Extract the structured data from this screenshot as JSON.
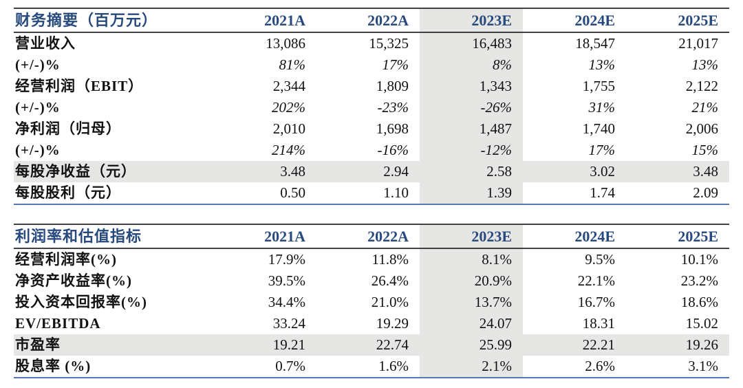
{
  "colors": {
    "header_text_blue": "#27497E",
    "highlight_gray": "#E6E6E4",
    "rule_dark": "#404040",
    "rule_bottom_blue": "#5578B4"
  },
  "tables": [
    {
      "title": "财务摘要（百万元）",
      "columns": [
        "2021A",
        "2022A",
        "2023E",
        "2024E",
        "2025E"
      ],
      "highlight_column": "2023E",
      "highlight_column_index": 2,
      "rows": [
        {
          "label": "营业收入",
          "values": [
            "13,086",
            "15,325",
            "16,483",
            "18,547",
            "21,017"
          ],
          "italic": false,
          "highlight": false
        },
        {
          "label": "(+/-)%",
          "values": [
            "81%",
            "17%",
            "8%",
            "13%",
            "13%"
          ],
          "italic": true,
          "highlight": false
        },
        {
          "label": "经营利润（EBIT）",
          "values": [
            "2,344",
            "1,809",
            "1,343",
            "1,755",
            "2,122"
          ],
          "italic": false,
          "highlight": false
        },
        {
          "label": "(+/-)%",
          "values": [
            "202%",
            "-23%",
            "-26%",
            "31%",
            "21%"
          ],
          "italic": true,
          "highlight": false
        },
        {
          "label": "净利润（归母）",
          "values": [
            "2,010",
            "1,698",
            "1,487",
            "1,740",
            "2,006"
          ],
          "italic": false,
          "highlight": false
        },
        {
          "label": "(+/-)%",
          "values": [
            "214%",
            "-16%",
            "-12%",
            "17%",
            "15%"
          ],
          "italic": true,
          "highlight": false
        },
        {
          "label": "每股净收益（元）",
          "values": [
            "3.48",
            "2.94",
            "2.58",
            "3.02",
            "3.48"
          ],
          "italic": false,
          "highlight": true
        },
        {
          "label": "每股股利（元）",
          "values": [
            "0.50",
            "1.10",
            "1.39",
            "1.74",
            "2.09"
          ],
          "italic": false,
          "highlight": false
        }
      ]
    },
    {
      "title": "利润率和估值指标",
      "columns": [
        "2021A",
        "2022A",
        "2023E",
        "2024E",
        "2025E"
      ],
      "highlight_column": "2023E",
      "highlight_column_index": 2,
      "rows": [
        {
          "label": "经营利润率(%)",
          "values": [
            "17.9%",
            "11.8%",
            "8.1%",
            "9.5%",
            "10.1%"
          ],
          "italic": false,
          "highlight": false
        },
        {
          "label": "净资产收益率(%)",
          "values": [
            "39.5%",
            "26.4%",
            "20.9%",
            "22.1%",
            "23.2%"
          ],
          "italic": false,
          "highlight": false
        },
        {
          "label": "投入资本回报率(%)",
          "values": [
            "34.4%",
            "21.0%",
            "13.7%",
            "16.7%",
            "18.6%"
          ],
          "italic": false,
          "highlight": false
        },
        {
          "label": "EV/EBITDA",
          "values": [
            "33.24",
            "19.29",
            "24.07",
            "18.31",
            "15.02"
          ],
          "italic": false,
          "highlight": false
        },
        {
          "label": "市盈率",
          "values": [
            "19.21",
            "22.74",
            "25.99",
            "22.21",
            "19.26"
          ],
          "italic": false,
          "highlight": true
        },
        {
          "label": "股息率 (%)",
          "values": [
            "0.7%",
            "1.6%",
            "2.1%",
            "2.6%",
            "3.1%"
          ],
          "italic": false,
          "highlight": false
        }
      ]
    }
  ]
}
